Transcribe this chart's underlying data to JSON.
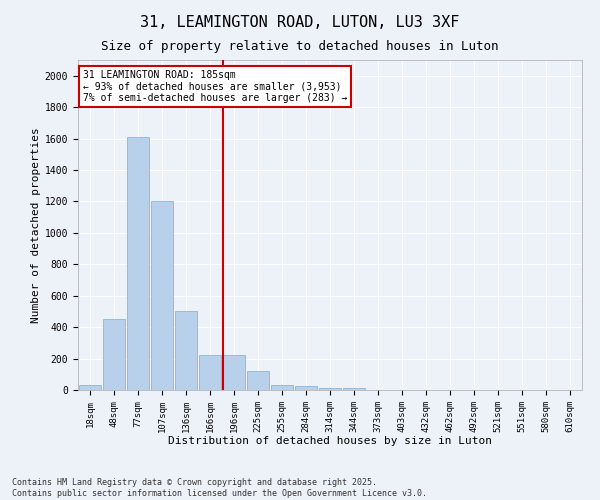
{
  "title1": "31, LEAMINGTON ROAD, LUTON, LU3 3XF",
  "title2": "Size of property relative to detached houses in Luton",
  "xlabel": "Distribution of detached houses by size in Luton",
  "ylabel": "Number of detached properties",
  "categories": [
    "18sqm",
    "48sqm",
    "77sqm",
    "107sqm",
    "136sqm",
    "166sqm",
    "196sqm",
    "225sqm",
    "255sqm",
    "284sqm",
    "314sqm",
    "344sqm",
    "373sqm",
    "403sqm",
    "432sqm",
    "462sqm",
    "492sqm",
    "521sqm",
    "551sqm",
    "580sqm",
    "610sqm"
  ],
  "values": [
    30,
    450,
    1610,
    1200,
    500,
    225,
    225,
    120,
    30,
    25,
    15,
    10,
    0,
    0,
    0,
    0,
    0,
    0,
    0,
    0,
    0
  ],
  "bar_color": "#b8d0ea",
  "bar_edge_color": "#7aafd4",
  "vline_index": 6,
  "vline_color": "#cc0000",
  "annotation_text": "31 LEAMINGTON ROAD: 185sqm\n← 93% of detached houses are smaller (3,953)\n7% of semi-detached houses are larger (283) →",
  "annotation_box_color": "#ffffff",
  "annotation_box_edge": "#cc0000",
  "ylim": [
    0,
    2100
  ],
  "yticks": [
    0,
    200,
    400,
    600,
    800,
    1000,
    1200,
    1400,
    1600,
    1800,
    2000
  ],
  "background_color": "#edf2f9",
  "grid_color": "#ffffff",
  "footer1": "Contains HM Land Registry data © Crown copyright and database right 2025.",
  "footer2": "Contains public sector information licensed under the Open Government Licence v3.0.",
  "title1_fontsize": 11,
  "title2_fontsize": 9,
  "tick_fontsize": 6.5,
  "label_fontsize": 8,
  "footer_fontsize": 6
}
